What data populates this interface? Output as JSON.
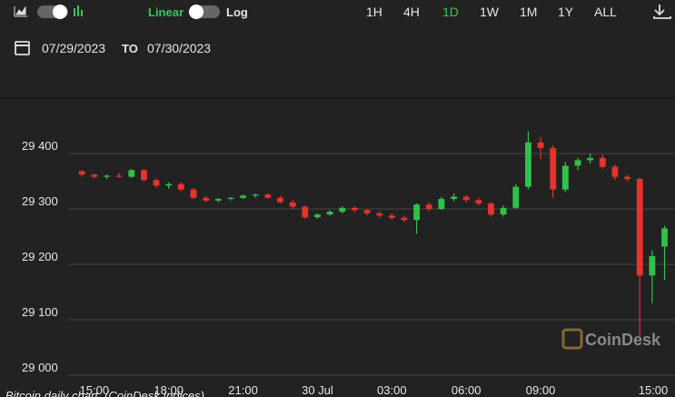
{
  "toolbar": {
    "scale_options": [
      "Linear",
      "Log"
    ],
    "active_scale": "Linear",
    "ranges": [
      "1H",
      "4H",
      "1D",
      "1W",
      "1M",
      "1Y",
      "ALL"
    ],
    "active_range": "1D",
    "date_from": "07/29/2023",
    "date_separator": "TO",
    "date_to": "07/30/2023"
  },
  "watermark": "CoinDesk",
  "caption": "Bitcoin daily chart. (CoinDesk Indices)",
  "chart_data": {
    "type": "candlestick",
    "x": [
      14.5,
      15,
      15.5,
      16,
      16.5,
      17,
      17.5,
      18,
      18.5,
      19,
      19.5,
      20,
      20.5,
      21,
      21.5,
      22,
      22.5,
      23,
      23.5,
      24,
      24.5,
      25,
      25.5,
      26,
      26.5,
      27,
      27.5,
      28,
      28.5,
      29,
      29.5,
      30,
      30.5,
      31,
      31.5,
      32,
      32.5,
      33,
      33.5,
      34,
      34.5,
      35,
      35.5,
      36,
      36.5,
      37,
      37.5,
      38
    ],
    "open": [
      29368,
      29362,
      29358,
      29360,
      29358,
      29370,
      29352,
      29342,
      29345,
      29335,
      29320,
      29315,
      29318,
      29320,
      29324,
      29326,
      29320,
      29312,
      29304,
      29285,
      29290,
      29295,
      29302,
      29298,
      29292,
      29288,
      29284,
      29280,
      29308,
      29300,
      29318,
      29322,
      29316,
      29310,
      29290,
      29302,
      29340,
      29420,
      29410,
      29335,
      29378,
      29388,
      29392,
      29376,
      29358,
      29354,
      29180,
      29232
    ],
    "high": [
      29370,
      29364,
      29362,
      29365,
      29372,
      29372,
      29356,
      29348,
      29348,
      29338,
      29324,
      29320,
      29322,
      29326,
      29328,
      29328,
      29324,
      29316,
      29306,
      29292,
      29298,
      29305,
      29305,
      29300,
      29296,
      29292,
      29288,
      29310,
      29312,
      29322,
      29328,
      29325,
      29320,
      29312,
      29306,
      29345,
      29440,
      29430,
      29415,
      29385,
      29392,
      29400,
      29398,
      29380,
      29362,
      29356,
      29225,
      29270
    ],
    "low": [
      29358,
      29355,
      29354,
      29356,
      29356,
      29350,
      29338,
      29336,
      29332,
      29318,
      29312,
      29312,
      29315,
      29318,
      29320,
      29318,
      29310,
      29300,
      29282,
      29282,
      29288,
      29292,
      29294,
      29288,
      29284,
      29280,
      29276,
      29255,
      29296,
      29298,
      29314,
      29312,
      29306,
      29286,
      29286,
      29300,
      29335,
      29390,
      29320,
      29330,
      29370,
      29382,
      29372,
      29352,
      29350,
      29070,
      29130,
      29172
    ],
    "close": [
      29362,
      29358,
      29360,
      29358,
      29370,
      29352,
      29342,
      29345,
      29335,
      29320,
      29315,
      29318,
      29320,
      29324,
      29326,
      29320,
      29312,
      29304,
      29285,
      29290,
      29295,
      29302,
      29298,
      29292,
      29288,
      29284,
      29280,
      29308,
      29300,
      29318,
      29322,
      29316,
      29310,
      29290,
      29302,
      29340,
      29420,
      29410,
      29335,
      29378,
      29388,
      29392,
      29376,
      29358,
      29354,
      29180,
      29215,
      29265
    ],
    "up_color": "#2fc24a",
    "down_color": "#e8322d",
    "xlim": [
      14.2,
      38.2
    ],
    "xticks": [
      {
        "value": 15,
        "label": "15:00"
      },
      {
        "value": 18,
        "label": "18:00"
      },
      {
        "value": 21,
        "label": "21:00"
      },
      {
        "value": 24,
        "label": "30 Jul"
      },
      {
        "value": 27,
        "label": "03:00"
      },
      {
        "value": 30,
        "label": "06:00"
      },
      {
        "value": 33,
        "label": "09:00"
      },
      {
        "value": 39,
        "label": "15:00"
      }
    ],
    "ylim": [
      29000,
      29500
    ],
    "yticks": [
      {
        "value": 29000,
        "label": "29 000"
      },
      {
        "value": 29100,
        "label": "29 100"
      },
      {
        "value": 29200,
        "label": "29 200"
      },
      {
        "value": 29300,
        "label": "29 300"
      },
      {
        "value": 29400,
        "label": "29 400"
      }
    ],
    "grid": true
  }
}
